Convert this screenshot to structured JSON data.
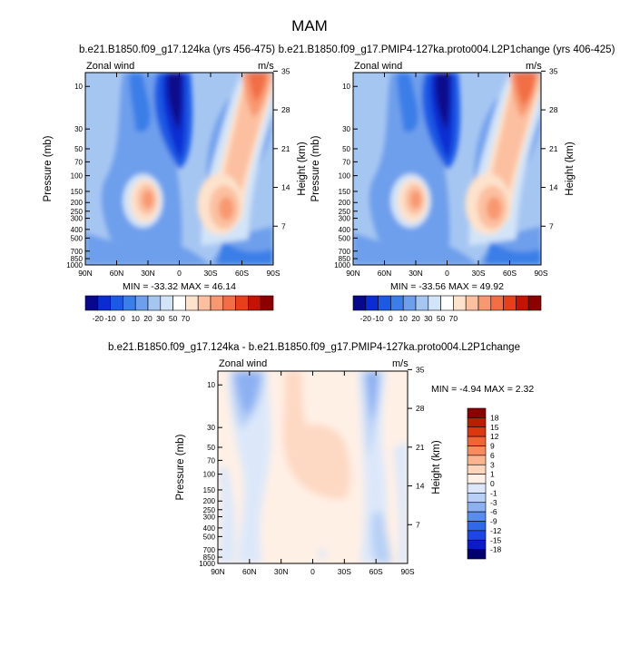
{
  "figure": {
    "title": "MAM"
  },
  "colors": {
    "palette1": [
      "#08088c",
      "#0a2dd2",
      "#1c5ae4",
      "#3a7ee8",
      "#6e9fec",
      "#a6c6f2",
      "#d2e4f8",
      "#ffffff",
      "#fde2cc",
      "#fcc0a0",
      "#f89870",
      "#f26e44",
      "#e64018",
      "#c21400",
      "#8c0000"
    ],
    "palette2": [
      "#00006e",
      "#0a1cc8",
      "#1e46e6",
      "#3068ea",
      "#5a8cee",
      "#8cb0f2",
      "#b8d0f6",
      "#dce8fa",
      "#fff0e6",
      "#fdd4bc",
      "#fbb48e",
      "#f78a5e",
      "#f26434",
      "#dc3810",
      "#b81e00",
      "#8c0000"
    ]
  },
  "chart_data": [
    {
      "type": "contour",
      "title": "b.e21.B1850.f09_g17.124ka (yrs 456-475)",
      "left_label": "Zonal wind",
      "right_label": "m/s",
      "ylabel": "Pressure (mb)",
      "ylabel_right": "Height (km)",
      "x_ticks": [
        "90N",
        "60N",
        "30N",
        "0",
        "30S",
        "60S",
        "90S"
      ],
      "y_ticks": [
        "10",
        "30",
        "50",
        "70",
        "100",
        "150",
        "200",
        "250",
        "300",
        "400",
        "500",
        "700",
        "850",
        "1000"
      ],
      "height_ticks": [
        "35",
        "28",
        "21",
        "14",
        "7"
      ],
      "stats": "MIN = -33.32  MAX =  46.14",
      "colorbar": {
        "orientation": "horizontal",
        "labels": [
          "-20",
          "-10",
          "0",
          "10",
          "20",
          "30",
          "50",
          "70"
        ]
      }
    },
    {
      "type": "contour",
      "title": "b.e21.B1850.f09_g17.PMIP4-127ka.proto004.L2P1change (yrs 406-425)",
      "left_label": "Zonal wind",
      "right_label": "m/s",
      "ylabel": "Pressure (mb)",
      "ylabel_right": "Height (km)",
      "x_ticks": [
        "90N",
        "60N",
        "30N",
        "0",
        "30S",
        "60S",
        "90S"
      ],
      "y_ticks": [
        "10",
        "30",
        "50",
        "70",
        "100",
        "150",
        "200",
        "250",
        "300",
        "400",
        "500",
        "700",
        "850",
        "1000"
      ],
      "height_ticks": [
        "35",
        "28",
        "21",
        "14",
        "7"
      ],
      "stats": "MIN = -33.56  MAX =  49.92",
      "colorbar": {
        "orientation": "horizontal",
        "labels": [
          "-20",
          "-10",
          "0",
          "10",
          "20",
          "30",
          "50",
          "70"
        ]
      }
    },
    {
      "type": "contour",
      "title": "b.e21.B1850.f09_g17.124ka - b.e21.B1850.f09_g17.PMIP4-127ka.proto004.L2P1change",
      "left_label": "Zonal wind",
      "right_label": "m/s",
      "ylabel": "Pressure (mb)",
      "ylabel_right": "Height (km)",
      "x_ticks": [
        "90N",
        "60N",
        "30N",
        "0",
        "30S",
        "60S",
        "90S"
      ],
      "y_ticks": [
        "10",
        "30",
        "50",
        "70",
        "100",
        "150",
        "200",
        "250",
        "300",
        "400",
        "500",
        "700",
        "850",
        "1000"
      ],
      "height_ticks": [
        "35",
        "28",
        "21",
        "14",
        "7"
      ],
      "stats": "MIN =  -4.94  MAX =   2.32",
      "colorbar": {
        "orientation": "vertical",
        "labels": [
          "18",
          "15",
          "12",
          "9",
          "6",
          "3",
          "1",
          "0",
          "-1",
          "-3",
          "-6",
          "-9",
          "-12",
          "-15",
          "-18"
        ]
      }
    }
  ]
}
